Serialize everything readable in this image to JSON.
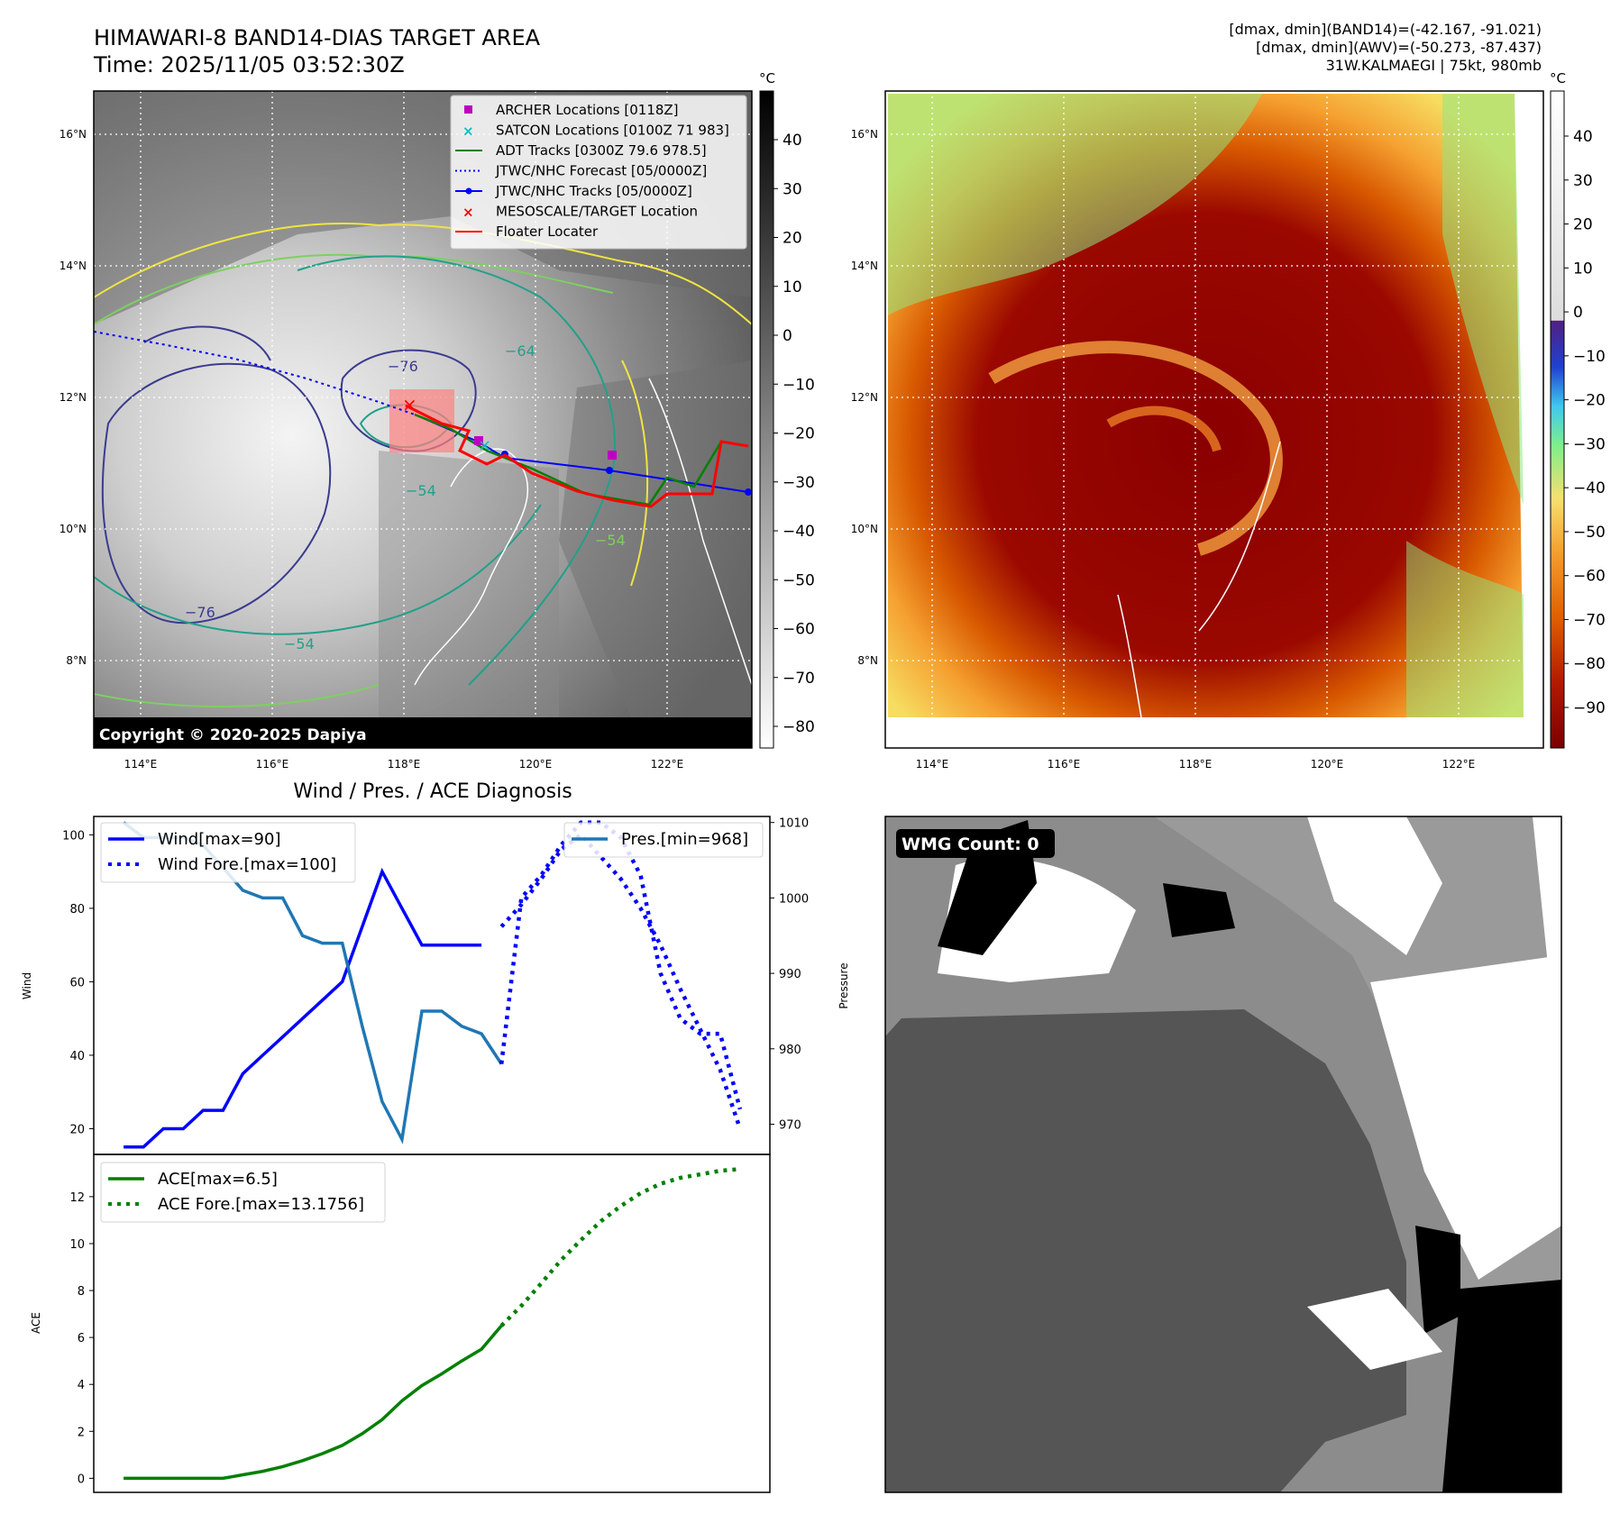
{
  "header": {
    "title_line1": "HIMAWARI-8 BAND14-DIAS TARGET AREA",
    "title_line2": "Time: 2025/11/05 03:52:30Z",
    "info_line1": "[dmax, dmin](BAND14)=(-42.167, -91.021)",
    "info_line2": "[dmax, dmin](AWV)=(-50.273, -87.437)",
    "info_line3": "31W.KALMAEGI | 75kt, 980mb"
  },
  "map": {
    "lon_labels": [
      "114°E",
      "116°E",
      "118°E",
      "120°E",
      "122°E"
    ],
    "lat_labels": [
      "16°N",
      "14°N",
      "12°N",
      "10°N",
      "8°N"
    ],
    "copyright": "Copyright © 2020-2025 Dapiya",
    "contour_labels": [
      "−76",
      "−64",
      "−76",
      "−54",
      "−54",
      "−54"
    ],
    "legend": [
      {
        "label": "ARCHER Locations [0118Z]",
        "color": "#bf00bf",
        "marker": "square"
      },
      {
        "label": "SATCON Locations [0100Z 71 983]",
        "color": "#00bfbf",
        "marker": "x"
      },
      {
        "label": "ADT Tracks [0300Z 79.6 978.5]",
        "color": "#008000",
        "marker": "line"
      },
      {
        "label": "JTWC/NHC Forecast [05/0000Z]",
        "color": "#0000ff",
        "marker": "dotted"
      },
      {
        "label": "JTWC/NHC Tracks [05/0000Z]",
        "color": "#0000ff",
        "marker": "line-dot"
      },
      {
        "label": "MESOSCALE/TARGET Location",
        "color": "#ff0000",
        "marker": "x"
      },
      {
        "label": "Floater Locater",
        "color": "#ff0000",
        "marker": "line"
      }
    ]
  },
  "colorbar_left": {
    "unit": "°C",
    "ticks": [
      "40",
      "30",
      "20",
      "10",
      "0",
      "−10",
      "−20",
      "−30",
      "−40",
      "−50",
      "−60",
      "−70",
      "−80"
    ]
  },
  "colorbar_right": {
    "unit": "°C",
    "ticks": [
      "40",
      "30",
      "20",
      "10",
      "0",
      "−10",
      "−20",
      "−30",
      "−40",
      "−50",
      "−60",
      "−70",
      "−80",
      "−90"
    ]
  },
  "wmg": {
    "label": "WMG Count: 0"
  },
  "colors": {
    "wind": "#0000ff",
    "pressure": "#1f77b4",
    "ace": "#008000",
    "red": "#ff0000"
  },
  "chart_data": [
    {
      "type": "line",
      "title": "Wind / Pres. / ACE Diagnosis",
      "ylabel": "Wind",
      "ylabel_right": "Pressure",
      "yticks": [
        "100",
        "80",
        "60",
        "40",
        "20"
      ],
      "yticks_right": [
        "1010",
        "1000",
        "990",
        "980",
        "970"
      ],
      "ylim": [
        13,
        105
      ],
      "ylim_right": [
        966,
        1010.8
      ],
      "series": [
        {
          "name": "Wind[max=90]",
          "axis": "left",
          "style": "solid",
          "x": [
            0,
            1,
            2,
            3,
            4,
            5,
            6,
            7,
            8,
            9,
            10,
            11,
            12,
            13,
            14,
            15,
            16,
            17,
            18
          ],
          "values": [
            15,
            15,
            20,
            20,
            25,
            25,
            35,
            40,
            45,
            50,
            55,
            60,
            75,
            90,
            80,
            70,
            70,
            70,
            70
          ]
        },
        {
          "name": "Wind Fore.[max=100]",
          "axis": "left",
          "style": "dotted",
          "x": [
            19,
            20,
            21,
            22,
            23,
            24,
            25,
            26,
            27,
            28,
            29,
            30,
            31
          ],
          "values": [
            75,
            81,
            88,
            96,
            100,
            94,
            88,
            80,
            70,
            58,
            47,
            36,
            20
          ]
        },
        {
          "name": "Pres.[min=968]",
          "axis": "right",
          "style": "solid",
          "x": [
            0,
            1,
            2,
            3,
            4,
            5,
            6,
            7,
            8,
            9,
            10,
            11,
            12,
            13,
            14,
            15,
            16,
            17,
            18,
            19
          ],
          "values": [
            1010,
            1008,
            1008,
            1008,
            1007,
            1004,
            1001,
            1000,
            1000,
            995,
            994,
            994,
            983,
            973,
            968,
            985,
            985,
            983,
            982,
            978
          ]
        },
        {
          "name": "",
          "axis": "right",
          "style": "dotted",
          "x": [
            19,
            20,
            21,
            22,
            23,
            24,
            25,
            26,
            27,
            28,
            29,
            30,
            31
          ],
          "values": [
            978,
            1000,
            1003,
            1007,
            1010,
            1010,
            1008,
            1003,
            990,
            984,
            982,
            982,
            972
          ]
        }
      ]
    },
    {
      "type": "line",
      "ylabel": "ACE",
      "yticks": [
        "12",
        "10",
        "8",
        "6",
        "4",
        "2",
        "0"
      ],
      "ylim": [
        -0.6,
        13.8
      ],
      "series": [
        {
          "name": "ACE[max=6.5]",
          "style": "solid",
          "x": [
            0,
            1,
            2,
            3,
            4,
            5,
            6,
            7,
            8,
            9,
            10,
            11,
            12,
            13,
            14,
            15,
            16,
            17,
            18,
            19
          ],
          "values": [
            0,
            0,
            0,
            0,
            0,
            0,
            0.15,
            0.3,
            0.5,
            0.75,
            1.05,
            1.4,
            1.9,
            2.5,
            3.3,
            3.95,
            4.45,
            5.0,
            5.5,
            6.5
          ]
        },
        {
          "name": "ACE Fore.[max=13.1756]",
          "style": "dotted",
          "x": [
            19,
            20,
            21,
            22,
            23,
            24,
            25,
            26,
            27,
            28,
            29,
            30,
            31
          ],
          "values": [
            6.5,
            7.35,
            8.3,
            9.3,
            10.15,
            10.95,
            11.6,
            12.15,
            12.55,
            12.8,
            12.95,
            13.1,
            13.1756
          ]
        }
      ]
    }
  ]
}
